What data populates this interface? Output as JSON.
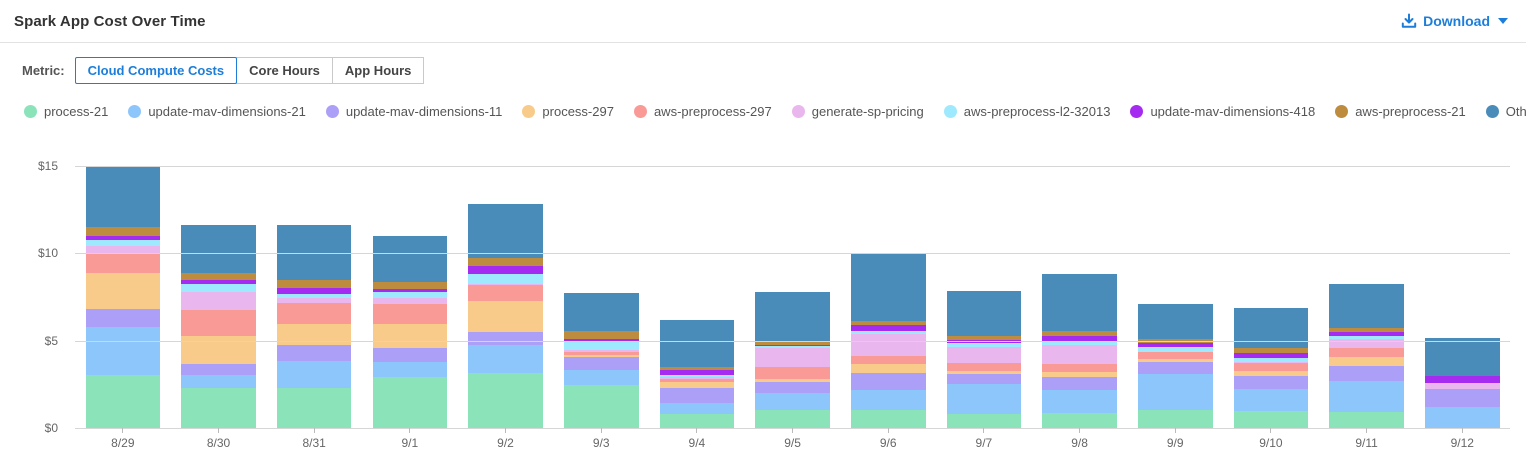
{
  "header": {
    "title": "Spark App Cost Over Time",
    "download_label": "Download"
  },
  "metric": {
    "label": "Metric:",
    "options": [
      {
        "label": "Cloud Compute Costs",
        "selected": true
      },
      {
        "label": "Core Hours",
        "selected": false
      },
      {
        "label": "App Hours",
        "selected": false
      }
    ]
  },
  "colors": {
    "accent_blue": "#1d7eda",
    "gridline": "#d6d6d6",
    "axis_text": "#666666"
  },
  "chart_data": {
    "type": "bar",
    "stacked": true,
    "title": "Spark App Cost Over Time",
    "xlabel": "",
    "ylabel": "",
    "ylim": [
      0,
      15
    ],
    "grid": true,
    "legend_position": "top",
    "y_ticks": [
      {
        "value": 15,
        "label": "$15"
      },
      {
        "value": 10,
        "label": "$10"
      },
      {
        "value": 5,
        "label": "$5"
      },
      {
        "value": 0,
        "label": "$0"
      }
    ],
    "categories": [
      "8/29",
      "8/30",
      "8/31",
      "9/1",
      "9/2",
      "9/3",
      "9/4",
      "9/5",
      "9/6",
      "9/7",
      "9/8",
      "9/9",
      "9/10",
      "9/11",
      "9/12"
    ],
    "series": [
      {
        "name": "process-21",
        "color": "#8be3ba",
        "values": [
          3.02,
          2.28,
          2.28,
          2.94,
          3.13,
          2.49,
          0.82,
          1.01,
          1.04,
          0.82,
          0.85,
          1.01,
          0.97,
          0.91,
          0.0
        ]
      },
      {
        "name": "update-mav-dimensions-21",
        "color": "#8cc6fb",
        "values": [
          2.74,
          0.78,
          1.58,
          0.82,
          1.62,
          0.83,
          0.61,
          0.99,
          1.14,
          1.71,
          1.3,
          2.08,
          1.27,
          1.81,
          1.2
        ]
      },
      {
        "name": "update-mav-dimensions-11",
        "color": "#ac9ff8",
        "values": [
          1.04,
          0.61,
          0.89,
          0.85,
          0.76,
          0.72,
          0.87,
          0.63,
          0.95,
          0.57,
          0.76,
          0.71,
          0.76,
          0.85,
          1.04
        ]
      },
      {
        "name": "process-297",
        "color": "#f8cb8b",
        "values": [
          2.08,
          1.61,
          1.19,
          1.33,
          1.76,
          0.15,
          0.32,
          0.19,
          0.53,
          0.15,
          0.28,
          0.15,
          0.28,
          0.47,
          0.0
        ]
      },
      {
        "name": "aws-preprocess-297",
        "color": "#fa9a96",
        "values": [
          1.13,
          1.46,
          1.24,
          1.18,
          0.9,
          0.19,
          0.19,
          0.67,
          0.48,
          0.46,
          0.47,
          0.38,
          0.47,
          0.57,
          0.0
        ]
      },
      {
        "name": "generate-sp-pricing",
        "color": "#eab6ee",
        "values": [
          0.41,
          1.07,
          0.24,
          0.35,
          0.1,
          0.11,
          0.09,
          1.07,
          1.23,
          0.95,
          1.11,
          0.05,
          0.05,
          0.47,
          0.32
        ]
      },
      {
        "name": "aws-preprocess-l2-32013",
        "color": "#9ee9fd",
        "values": [
          0.34,
          0.45,
          0.23,
          0.34,
          0.57,
          0.46,
          0.13,
          0.11,
          0.19,
          0.19,
          0.13,
          0.25,
          0.19,
          0.2,
          0.0
        ]
      },
      {
        "name": "update-mav-dimensions-418",
        "color": "#a52bf0",
        "values": [
          0.23,
          0.21,
          0.38,
          0.13,
          0.44,
          0.13,
          0.32,
          0.11,
          0.35,
          0.21,
          0.38,
          0.23,
          0.32,
          0.2,
          0.44
        ]
      },
      {
        "name": "aws-preprocess-21",
        "color": "#bd8c3e",
        "values": [
          0.53,
          0.42,
          0.47,
          0.42,
          0.47,
          0.48,
          0.15,
          0.23,
          0.22,
          0.23,
          0.25,
          0.25,
          0.25,
          0.25,
          0.0
        ]
      },
      {
        "name": "Other",
        "color": "#4a8cb9",
        "values": [
          3.49,
          2.71,
          3.1,
          2.62,
          3.06,
          2.18,
          2.7,
          2.8,
          3.9,
          2.53,
          3.3,
          1.97,
          2.34,
          2.5,
          2.13
        ]
      }
    ]
  }
}
